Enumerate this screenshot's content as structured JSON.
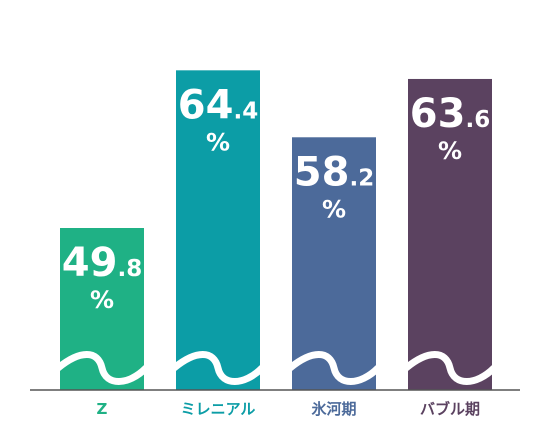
{
  "chart_data": {
    "type": "bar",
    "categories": [
      "Z",
      "ミレニアル",
      "氷河期",
      "バブル期"
    ],
    "values": [
      49.8,
      64.4,
      58.2,
      63.6
    ],
    "display_values": [
      {
        "int": "49",
        "dec": ".8",
        "unit": "%"
      },
      {
        "int": "64",
        "dec": ".4",
        "unit": "%"
      },
      {
        "int": "58",
        "dec": ".2",
        "unit": "%"
      },
      {
        "int": "63",
        "dec": ".6",
        "unit": "%"
      }
    ],
    "colors": [
      "#1fb185",
      "#0c9da6",
      "#4c6a9a",
      "#5b4260"
    ],
    "title": "",
    "xlabel": "",
    "ylabel": "",
    "ylim": [
      0,
      70
    ],
    "grid": false,
    "legend": "none"
  }
}
